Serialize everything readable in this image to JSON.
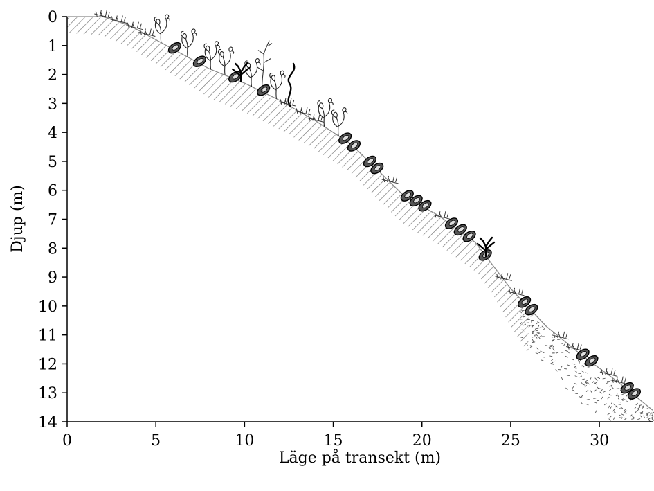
{
  "chart_data": {
    "type": "profile",
    "xlabel": "Läge på transekt (m)",
    "ylabel": "Djup (m)",
    "xlim": [
      0,
      33
    ],
    "ylim": [
      0,
      14
    ],
    "y_inverted": true,
    "x_ticks": [
      "0",
      "5",
      "10",
      "15",
      "20",
      "25",
      "30"
    ],
    "y_ticks": [
      "0",
      "1",
      "2",
      "3",
      "4",
      "5",
      "6",
      "7",
      "8",
      "9",
      "10",
      "11",
      "12",
      "13",
      "14"
    ],
    "bottom_profile": [
      [
        0,
        0
      ],
      [
        2,
        0
      ],
      [
        3.5,
        0.3
      ],
      [
        5,
        0.8
      ],
      [
        6.5,
        1.3
      ],
      [
        8,
        1.8
      ],
      [
        10,
        2.3
      ],
      [
        12,
        2.9
      ],
      [
        14,
        3.6
      ],
      [
        16,
        4.4
      ],
      [
        17.5,
        5.3
      ],
      [
        19,
        6.2
      ],
      [
        21,
        6.9
      ],
      [
        23,
        7.8
      ],
      [
        25,
        9.4
      ],
      [
        27,
        10.7
      ],
      [
        29,
        11.7
      ],
      [
        31,
        12.6
      ],
      [
        33,
        13.6
      ]
    ],
    "substrate": [
      {
        "type": "hatched",
        "x": [
          0,
          26
        ]
      },
      {
        "type": "dotted",
        "x": [
          25.5,
          33
        ]
      }
    ],
    "organisms": [
      {
        "type": "mussel",
        "x": 6.2
      },
      {
        "type": "mussel",
        "x": 7.6
      },
      {
        "type": "mussel",
        "x": 9.6
      },
      {
        "type": "mussel",
        "x": 11.2
      },
      {
        "type": "mussel",
        "x": 15.8
      },
      {
        "type": "mussel",
        "x": 16.3
      },
      {
        "type": "mussel",
        "x": 17.2
      },
      {
        "type": "mussel",
        "x": 17.6
      },
      {
        "type": "mussel",
        "x": 19.3
      },
      {
        "type": "mussel",
        "x": 19.8
      },
      {
        "type": "mussel",
        "x": 20.3
      },
      {
        "type": "mussel",
        "x": 21.8
      },
      {
        "type": "mussel",
        "x": 22.3
      },
      {
        "type": "mussel",
        "x": 22.8
      },
      {
        "type": "mussel",
        "x": 23.7
      },
      {
        "type": "mussel",
        "x": 25.9
      },
      {
        "type": "mussel",
        "x": 26.3
      },
      {
        "type": "mussel",
        "x": 29.2
      },
      {
        "type": "mussel",
        "x": 29.7
      },
      {
        "type": "mussel",
        "x": 31.7
      },
      {
        "type": "mussel",
        "x": 32.1
      },
      {
        "type": "bushy-alga",
        "x": 5.3
      },
      {
        "type": "bushy-alga",
        "x": 6.8
      },
      {
        "type": "bushy-alga",
        "x": 8.1
      },
      {
        "type": "bushy-alga",
        "x": 8.9
      },
      {
        "type": "bushy-alga",
        "x": 10.4
      },
      {
        "type": "bushy-alga",
        "x": 11.8
      },
      {
        "type": "bushy-alga",
        "x": 14.5
      },
      {
        "type": "bushy-alga",
        "x": 15.3
      },
      {
        "type": "dark-alga",
        "x": 9.8
      },
      {
        "type": "dark-alga",
        "x": 23.6
      },
      {
        "type": "thin-alga",
        "x": 11.0
      },
      {
        "type": "wavy-alga",
        "x": 12.6
      },
      {
        "type": "grass",
        "x": 2.0
      },
      {
        "type": "grass",
        "x": 2.9
      },
      {
        "type": "grass",
        "x": 3.8
      },
      {
        "type": "grass",
        "x": 4.5
      },
      {
        "type": "grass",
        "x": 12.4
      },
      {
        "type": "grass",
        "x": 13.3
      },
      {
        "type": "grass",
        "x": 14.0
      },
      {
        "type": "grass",
        "x": 18.2
      },
      {
        "type": "grass",
        "x": 21.1
      },
      {
        "type": "grass",
        "x": 24.6
      },
      {
        "type": "grass",
        "x": 25.3
      },
      {
        "type": "grass",
        "x": 27.8
      },
      {
        "type": "grass",
        "x": 28.6
      },
      {
        "type": "grass",
        "x": 30.5
      },
      {
        "type": "grass",
        "x": 31.1
      }
    ]
  }
}
